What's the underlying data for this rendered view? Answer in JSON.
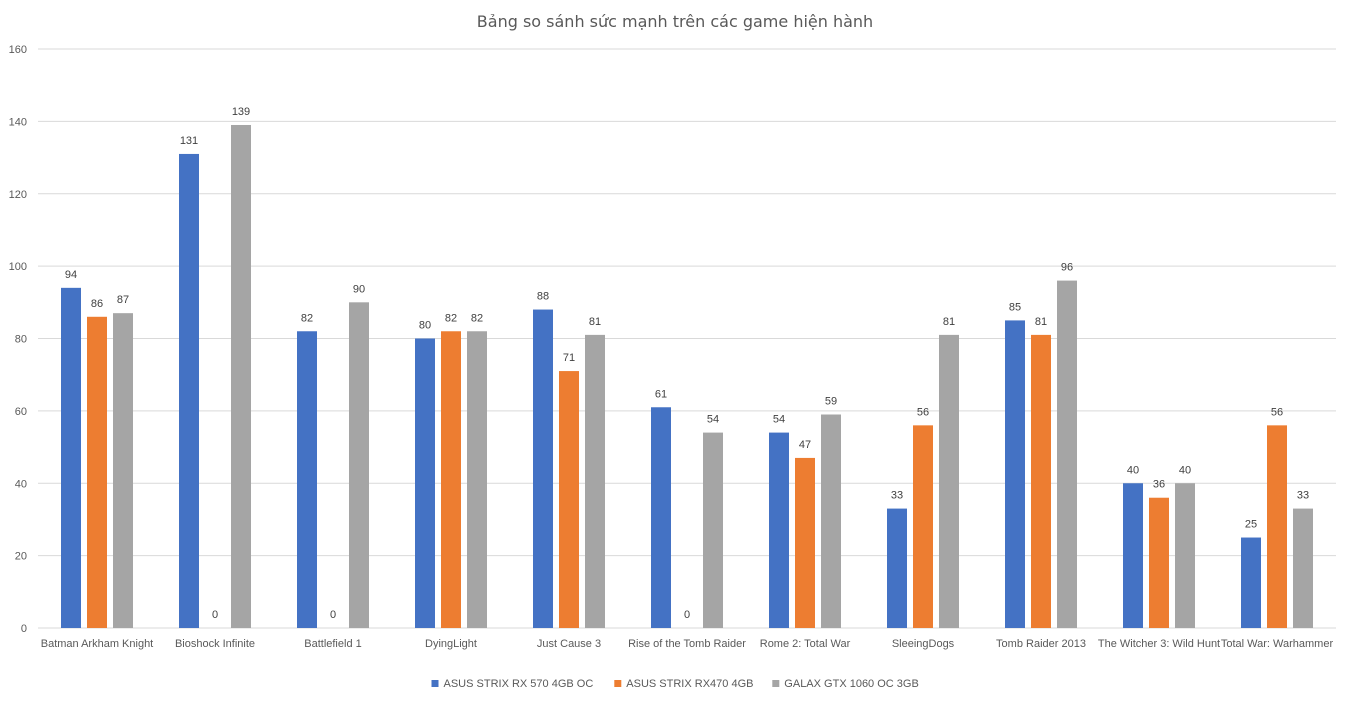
{
  "chart_data": {
    "type": "bar",
    "title": "Bảng so sánh sức mạnh trên các game hiện hành",
    "categories": [
      "Batman Arkham Knight",
      "Bioshock Infinite",
      "Battlefield 1",
      "DyingLight",
      "Just Cause 3",
      "Rise of the Tomb Raider",
      "Rome 2: Total War",
      "SleeingDogs",
      "Tomb Raider 2013",
      "The Witcher 3: Wild Hunt",
      "Total War: Warhammer"
    ],
    "series": [
      {
        "name": "ASUS STRIX RX 570 4GB OC",
        "color": "#4472c4",
        "values": [
          94,
          131,
          82,
          80,
          88,
          61,
          54,
          33,
          85,
          40,
          25
        ]
      },
      {
        "name": "ASUS STRIX RX470 4GB",
        "color": "#ed7d31",
        "values": [
          86,
          0,
          0,
          82,
          71,
          0,
          47,
          56,
          81,
          36,
          56
        ]
      },
      {
        "name": "GALAX GTX 1060 OC 3GB",
        "color": "#a5a5a5",
        "values": [
          87,
          139,
          90,
          82,
          81,
          54,
          59,
          81,
          96,
          40,
          33
        ]
      }
    ],
    "ylim": [
      0,
      160
    ],
    "yticks": [
      0,
      20,
      40,
      60,
      80,
      100,
      120,
      140,
      160
    ],
    "grid": true,
    "legend": "bottom",
    "data_labels": true
  }
}
